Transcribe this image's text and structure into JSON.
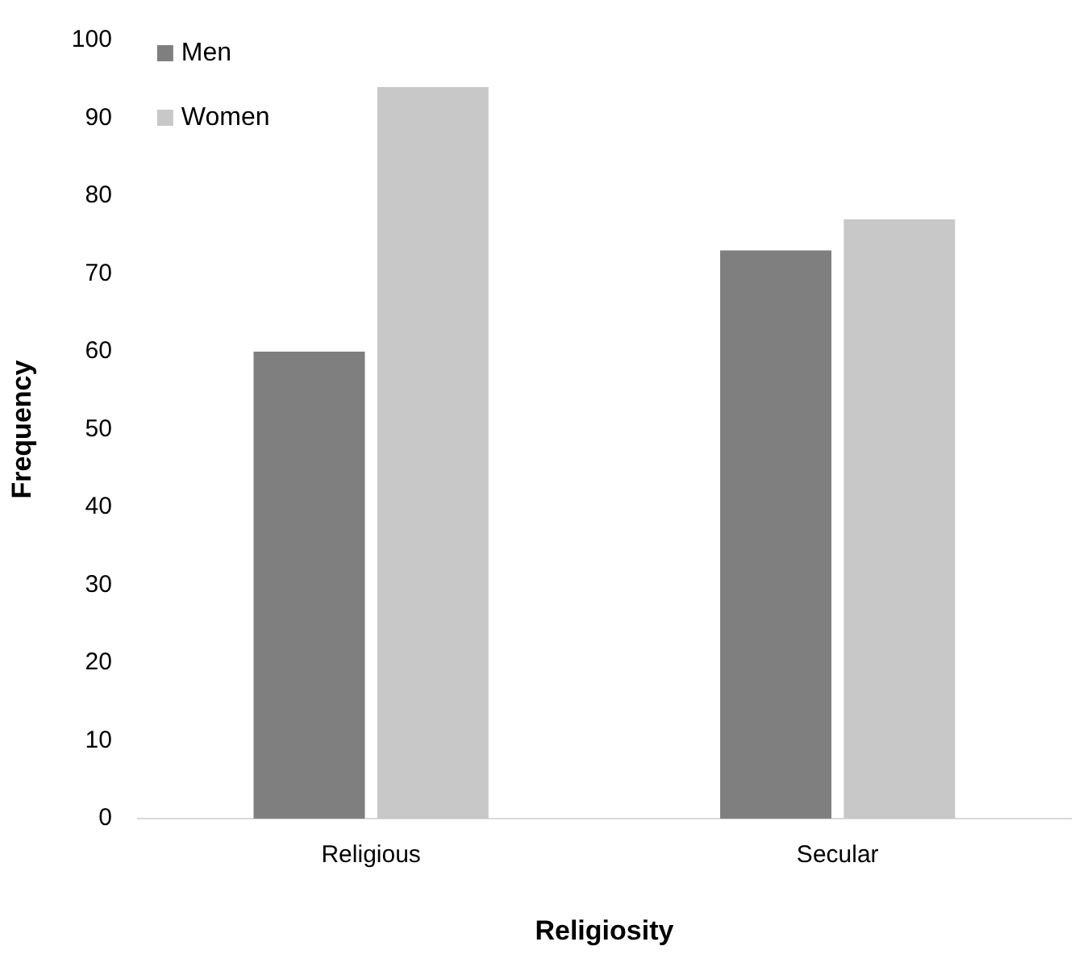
{
  "chart_data": {
    "type": "bar",
    "xlabel": "Religiosity",
    "ylabel": "Frequency",
    "categories": [
      "Religious",
      "Secular"
    ],
    "series": [
      {
        "name": "Men",
        "color": "#7f7f7f",
        "values": [
          60,
          73
        ]
      },
      {
        "name": "Women",
        "color": "#c8c8c8",
        "values": [
          94,
          77
        ]
      }
    ],
    "ylim": [
      0,
      100
    ],
    "yticks": [
      0,
      10,
      20,
      30,
      40,
      50,
      60,
      70,
      80,
      90,
      100
    ],
    "grid": false,
    "legend": "top left"
  }
}
